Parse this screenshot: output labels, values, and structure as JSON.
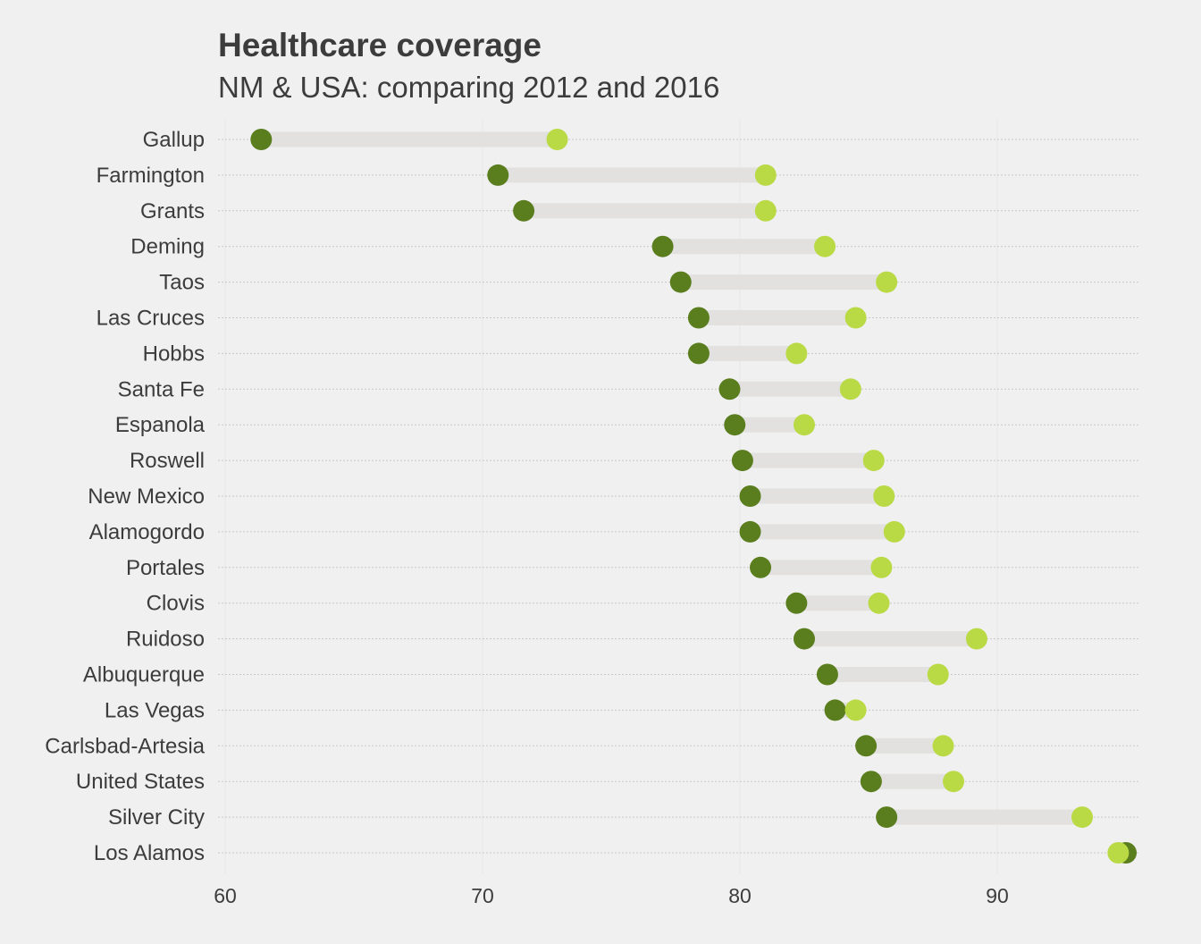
{
  "title": "Healthcare coverage",
  "subtitle": "NM & USA: comparing 2012 and 2016",
  "colors": {
    "background": "#f0f0f0",
    "y2012": "#5a7d1e",
    "y2016": "#bada45",
    "range_bar": "#e2e1df",
    "grid": "#e6e6e6",
    "guide": "#c8c8c8",
    "text": "#3c3c3c"
  },
  "chart_data": {
    "type": "dumbbell",
    "title": "Healthcare coverage",
    "subtitle": "NM & USA: comparing 2012 and 2016",
    "xlabel": "",
    "ylabel": "",
    "xlim": [
      60,
      95.5
    ],
    "xticks": [
      60,
      70,
      80,
      90
    ],
    "grid": "vertical",
    "categories": [
      "Gallup",
      "Farmington",
      "Grants",
      "Deming",
      "Taos",
      "Las Cruces",
      "Hobbs",
      "Santa Fe",
      "Espanola",
      "Roswell",
      "New Mexico",
      "Alamogordo",
      "Portales",
      "Clovis",
      "Ruidoso",
      "Albuquerque",
      "Las Vegas",
      "Carlsbad-Artesia",
      "United States",
      "Silver City",
      "Los Alamos"
    ],
    "series": [
      {
        "values": [
          61.4,
          70.6,
          71.6,
          77.0,
          77.7,
          78.4,
          78.4,
          79.6,
          79.8,
          80.1,
          80.4,
          80.4,
          80.8,
          82.2,
          82.5,
          83.4,
          83.7,
          84.9,
          85.1,
          85.7,
          95.0
        ]
      },
      {
        "values": [
          72.9,
          81.0,
          81.0,
          83.3,
          85.7,
          84.5,
          82.2,
          84.3,
          82.5,
          85.2,
          85.6,
          86.0,
          85.5,
          85.4,
          89.2,
          87.7,
          84.5,
          87.9,
          88.3,
          93.3,
          94.7
        ]
      }
    ]
  }
}
